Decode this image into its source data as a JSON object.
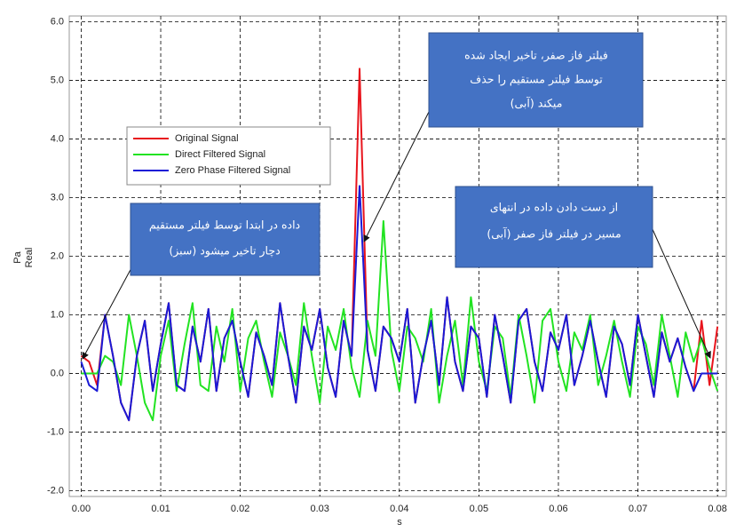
{
  "chart_data": {
    "type": "line",
    "x_label": "s",
    "y_label": [
      "Pa",
      "Real"
    ],
    "xlim": [
      -0.0015,
      0.0811
    ],
    "ylim": [
      -2.1,
      6.1
    ],
    "xticks": [
      {
        "value": 0,
        "label": "0.00"
      },
      {
        "value": 0.01,
        "label": "0.01"
      },
      {
        "value": 0.02,
        "label": "0.02"
      },
      {
        "value": 0.03,
        "label": "0.03"
      },
      {
        "value": 0.04,
        "label": "0.04"
      },
      {
        "value": 0.05,
        "label": "0.05"
      },
      {
        "value": 0.06,
        "label": "0.06"
      },
      {
        "value": 0.07,
        "label": "0.07"
      },
      {
        "value": 0.08,
        "label": "0.08"
      }
    ],
    "yticks": [
      {
        "value": -2,
        "label": "-2.0"
      },
      {
        "value": -1,
        "label": "-1.0"
      },
      {
        "value": 0,
        "label": "0.0"
      },
      {
        "value": 1,
        "label": "1.0"
      },
      {
        "value": 2,
        "label": "2.0"
      },
      {
        "value": 3,
        "label": "3.0"
      },
      {
        "value": 4,
        "label": "4.0"
      },
      {
        "value": 5,
        "label": "5.0"
      },
      {
        "value": 6,
        "label": "6.0"
      }
    ],
    "grid": true,
    "x": [
      0,
      0.001,
      0.002,
      0.003,
      0.004,
      0.005,
      0.006,
      0.007,
      0.008,
      0.009,
      0.01,
      0.011,
      0.012,
      0.013,
      0.014,
      0.015,
      0.016,
      0.017,
      0.018,
      0.019,
      0.02,
      0.021,
      0.022,
      0.023,
      0.024,
      0.025,
      0.026,
      0.027,
      0.028,
      0.029,
      0.03,
      0.031,
      0.032,
      0.033,
      0.034,
      0.035,
      0.036,
      0.037,
      0.038,
      0.039,
      0.04,
      0.041,
      0.042,
      0.043,
      0.044,
      0.045,
      0.046,
      0.047,
      0.048,
      0.049,
      0.05,
      0.051,
      0.052,
      0.053,
      0.054,
      0.055,
      0.056,
      0.057,
      0.058,
      0.059,
      0.06,
      0.061,
      0.062,
      0.063,
      0.064,
      0.065,
      0.066,
      0.067,
      0.068,
      0.069,
      0.07,
      0.071,
      0.072,
      0.073,
      0.074,
      0.075,
      0.076,
      0.077,
      0.078,
      0.079,
      0.08
    ],
    "series": [
      {
        "name": "Original Signal",
        "color": "#e8141c",
        "values": [
          0.3,
          0.2,
          -0.2,
          1.0,
          0.3,
          -0.5,
          -0.8,
          0.3,
          0.9,
          -0.3,
          0.5,
          1.2,
          -0.2,
          -0.3,
          0.8,
          0.2,
          1.1,
          -0.3,
          0.6,
          0.9,
          0.2,
          -0.4,
          0.7,
          0.3,
          -0.2,
          1.2,
          0.3,
          -0.5,
          0.8,
          0.4,
          1.1,
          0.1,
          -0.4,
          0.9,
          0.3,
          5.2,
          0.4,
          -0.3,
          0.8,
          0.6,
          0.2,
          1.1,
          -0.5,
          0.3,
          0.9,
          -0.2,
          1.3,
          0.2,
          -0.3,
          0.8,
          0.6,
          -0.4,
          1.0,
          0.3,
          -0.5,
          0.9,
          1.1,
          0.2,
          -0.3,
          0.7,
          0.4,
          1.0,
          -0.2,
          0.3,
          0.9,
          0.2,
          -0.4,
          0.8,
          0.5,
          -0.2,
          1.0,
          0.3,
          -0.4,
          0.7,
          0.2,
          0.6,
          0.1,
          -0.3,
          0.9,
          -0.2,
          0.8
        ]
      },
      {
        "name": "Direct Filtered Signal",
        "color": "#22e322",
        "values": [
          0,
          0,
          0,
          0.3,
          0.2,
          -0.2,
          1.0,
          0.3,
          -0.5,
          -0.8,
          0.3,
          0.9,
          -0.3,
          0.5,
          1.2,
          -0.2,
          -0.3,
          0.8,
          0.2,
          1.1,
          -0.3,
          0.6,
          0.9,
          0.2,
          -0.4,
          0.7,
          0.3,
          -0.2,
          1.2,
          0.3,
          -0.5,
          0.8,
          0.4,
          1.1,
          0.1,
          -0.4,
          0.9,
          0.3,
          2.6,
          0.4,
          -0.3,
          0.8,
          0.6,
          0.2,
          1.1,
          -0.5,
          0.3,
          0.9,
          -0.2,
          1.3,
          0.2,
          -0.3,
          0.8,
          0.6,
          -0.4,
          1.0,
          0.3,
          -0.5,
          0.9,
          1.1,
          0.2,
          -0.3,
          0.7,
          0.4,
          1.0,
          -0.2,
          0.3,
          0.9,
          0.2,
          -0.4,
          0.8,
          0.5,
          -0.2,
          1.0,
          0.3,
          -0.4,
          0.7,
          0.2,
          0.6,
          0.1,
          -0.3
        ]
      },
      {
        "name": "Zero Phase Filtered Signal",
        "color": "#1a1ad6",
        "values": [
          0.2,
          -0.2,
          -0.3,
          1.0,
          0.3,
          -0.5,
          -0.8,
          0.3,
          0.9,
          -0.3,
          0.5,
          1.2,
          -0.2,
          -0.3,
          0.8,
          0.2,
          1.1,
          -0.3,
          0.6,
          0.9,
          0.2,
          -0.4,
          0.7,
          0.3,
          -0.2,
          1.2,
          0.3,
          -0.5,
          0.8,
          0.4,
          1.1,
          0.1,
          -0.4,
          0.9,
          0.3,
          3.2,
          0.4,
          -0.3,
          0.8,
          0.6,
          0.2,
          1.1,
          -0.5,
          0.3,
          0.9,
          -0.2,
          1.3,
          0.2,
          -0.3,
          0.8,
          0.6,
          -0.4,
          1.0,
          0.3,
          -0.5,
          0.9,
          1.1,
          0.2,
          -0.3,
          0.7,
          0.4,
          1.0,
          -0.2,
          0.3,
          0.9,
          0.2,
          -0.4,
          0.8,
          0.5,
          -0.2,
          1.0,
          0.3,
          -0.4,
          0.7,
          0.2,
          0.6,
          0.1,
          -0.3,
          0.0,
          0.0,
          0.0
        ]
      }
    ],
    "annotations": [
      {
        "lines": [
          "فیلتر فاز صفر، تاخیر ایجاد شده",
          "توسط فیلتر مستقیم را حذف",
          "میکند (آبی)"
        ]
      },
      {
        "lines": [
          "داده در ابتدا توسط فیلتر مستقیم",
          "دچار تاخیر میشود (سبز)"
        ]
      },
      {
        "lines": [
          "از دست دادن داده در انتهای",
          "مسیر در فیلتر فاز صفر (آبی)"
        ]
      }
    ]
  }
}
